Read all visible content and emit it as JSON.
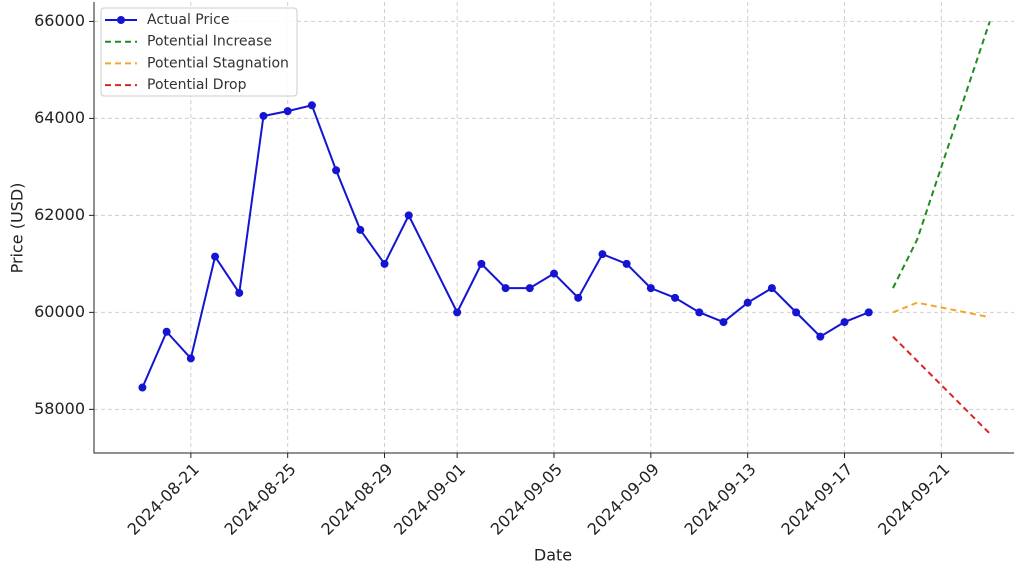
{
  "chart_data": {
    "type": "line",
    "xlabel": "Date",
    "ylabel": "Price (USD)",
    "series": [
      {
        "name": "Actual Price",
        "color": "#1414d2",
        "linestyle": "solid",
        "marker": "o",
        "x": [
          "2024-08-19",
          "2024-08-20",
          "2024-08-21",
          "2024-08-22",
          "2024-08-23",
          "2024-08-24",
          "2024-08-25",
          "2024-08-26",
          "2024-08-27",
          "2024-08-28",
          "2024-08-29",
          "2024-08-30",
          "2024-09-01",
          "2024-09-02",
          "2024-09-03",
          "2024-09-04",
          "2024-09-05",
          "2024-09-06",
          "2024-09-07",
          "2024-09-08",
          "2024-09-09",
          "2024-09-10",
          "2024-09-11",
          "2024-09-12",
          "2024-09-13",
          "2024-09-14",
          "2024-09-15",
          "2024-09-16",
          "2024-09-17",
          "2024-09-18"
        ],
        "values": [
          58450,
          59600,
          59050,
          61150,
          60400,
          64050,
          64150,
          64270,
          62930,
          61700,
          61000,
          62000,
          60000,
          61000,
          60500,
          60500,
          60800,
          60300,
          61200,
          61000,
          60500,
          60300,
          60000,
          59800,
          60200,
          60500,
          60000,
          59500,
          59800,
          60000
        ]
      },
      {
        "name": "Potential Increase",
        "color": "#1e8c1e",
        "linestyle": "dashed",
        "x": [
          "2024-09-19",
          "2024-09-20",
          "2024-09-21",
          "2024-09-22",
          "2024-09-23"
        ],
        "values": [
          60500,
          61500,
          63000,
          64500,
          66000
        ]
      },
      {
        "name": "Potential Stagnation",
        "color": "#f2a72a",
        "linestyle": "dashed",
        "x": [
          "2024-09-19",
          "2024-09-20",
          "2024-09-21",
          "2024-09-22",
          "2024-09-23"
        ],
        "values": [
          60000,
          60200,
          60100,
          60000,
          59900
        ]
      },
      {
        "name": "Potential Drop",
        "color": "#d92626",
        "linestyle": "dashed",
        "x": [
          "2024-09-19",
          "2024-09-20",
          "2024-09-21",
          "2024-09-22",
          "2024-09-23"
        ],
        "values": [
          59500,
          59000,
          58500,
          58000,
          57500
        ]
      }
    ],
    "xlim": [
      "2024-08-17",
      "2024-09-24"
    ],
    "xticks": [
      "2024-08-21",
      "2024-08-25",
      "2024-08-29",
      "2024-09-01",
      "2024-09-05",
      "2024-09-09",
      "2024-09-13",
      "2024-09-17",
      "2024-09-21"
    ],
    "ylim": [
      57100,
      66400
    ],
    "yticks": [
      58000,
      60000,
      62000,
      64000,
      66000
    ],
    "grid": true,
    "legend": "upper left"
  }
}
